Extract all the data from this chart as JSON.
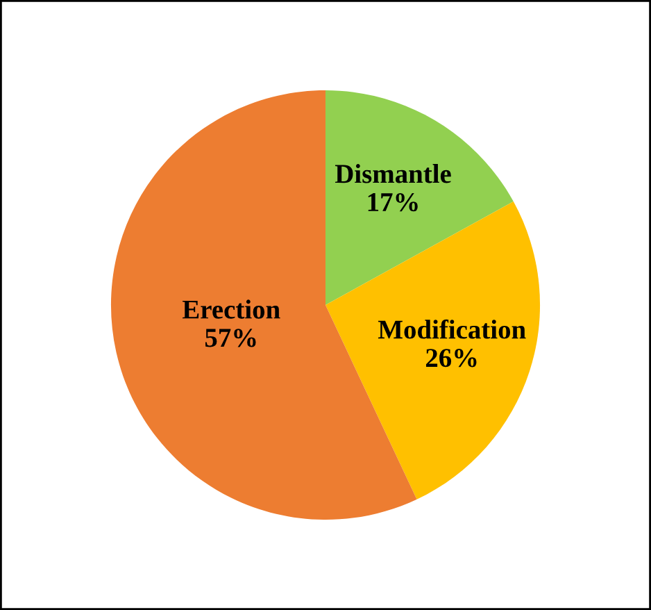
{
  "chart_data": {
    "type": "pie",
    "categories": [
      "Dismantle",
      "Modification",
      "Erection"
    ],
    "values": [
      17,
      26,
      57
    ],
    "value_labels": [
      "17%",
      "26%",
      "57%"
    ],
    "colors": [
      "#92d050",
      "#ffc000",
      "#ed7d31"
    ]
  }
}
